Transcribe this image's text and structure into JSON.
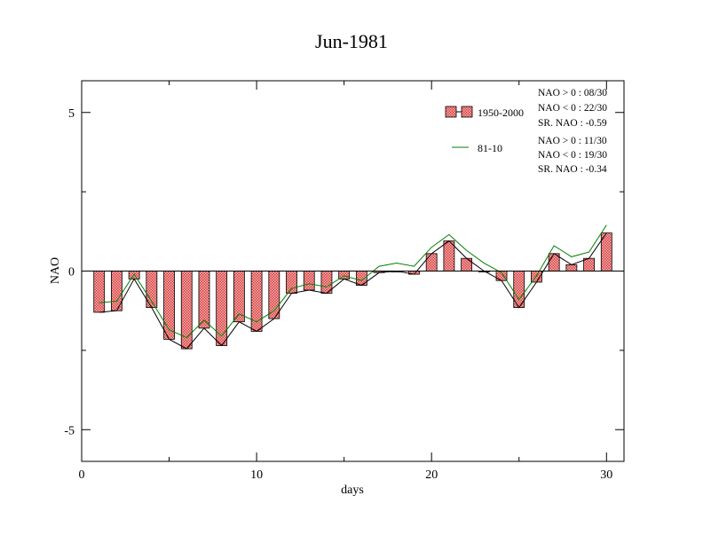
{
  "chart_data": {
    "type": "bar",
    "title": "Jun-1981",
    "xlabel": "days",
    "ylabel": "NAO",
    "xlim": [
      0,
      31
    ],
    "ylim": [
      -6,
      6
    ],
    "x_ticks": [
      0,
      10,
      20,
      30
    ],
    "x_tick_labels": [
      "0",
      "10",
      "20",
      "30"
    ],
    "y_ticks": [
      -5,
      0,
      5
    ],
    "y_tick_labels": [
      "-5",
      "0",
      "5"
    ],
    "grid": false,
    "legend_position": "top-right",
    "x": [
      1,
      2,
      3,
      4,
      5,
      6,
      7,
      8,
      9,
      10,
      11,
      12,
      13,
      14,
      15,
      16,
      17,
      18,
      19,
      20,
      21,
      22,
      23,
      24,
      25,
      26,
      27,
      28,
      29,
      30
    ],
    "series": [
      {
        "name": "1950-2000",
        "kind": "bar",
        "color": "#e87070",
        "values": [
          -1.3,
          -1.25,
          -0.25,
          -1.15,
          -2.15,
          -2.45,
          -1.8,
          -2.35,
          -1.6,
          -1.9,
          -1.5,
          -0.7,
          -0.6,
          -0.7,
          -0.25,
          -0.45,
          -0.05,
          0.0,
          -0.1,
          0.55,
          0.95,
          0.4,
          0.0,
          -0.3,
          -1.15,
          -0.35,
          0.55,
          0.2,
          0.4,
          1.2
        ]
      },
      {
        "name": "",
        "kind": "line",
        "color": "#000000",
        "values": [
          -1.3,
          -1.25,
          -0.25,
          -1.15,
          -2.15,
          -2.45,
          -1.8,
          -2.35,
          -1.6,
          -1.9,
          -1.5,
          -0.7,
          -0.6,
          -0.7,
          -0.25,
          -0.45,
          -0.05,
          0.0,
          -0.1,
          0.55,
          0.95,
          0.4,
          0.0,
          -0.3,
          -1.15,
          -0.35,
          0.55,
          0.2,
          0.4,
          1.2
        ]
      },
      {
        "name": "81-10",
        "kind": "line",
        "color": "#008000",
        "values": [
          -1.0,
          -0.95,
          -0.1,
          -0.95,
          -1.85,
          -2.1,
          -1.55,
          -2.05,
          -1.35,
          -1.6,
          -1.25,
          -0.55,
          -0.4,
          -0.5,
          -0.15,
          -0.3,
          0.15,
          0.25,
          0.15,
          0.75,
          1.15,
          0.65,
          0.25,
          -0.05,
          -0.9,
          -0.15,
          0.8,
          0.45,
          0.6,
          1.45
        ]
      }
    ],
    "legend_entries": [
      {
        "label": "1950-2000",
        "stats": [
          "NAO > 0 : 08/30",
          "NAO < 0 : 22/30",
          "SR. NAO : -0.59"
        ]
      },
      {
        "label": "81-10",
        "stats": [
          "NAO > 0 : 11/30",
          "NAO < 0 : 19/30",
          "SR. NAO : -0.34"
        ]
      }
    ]
  }
}
